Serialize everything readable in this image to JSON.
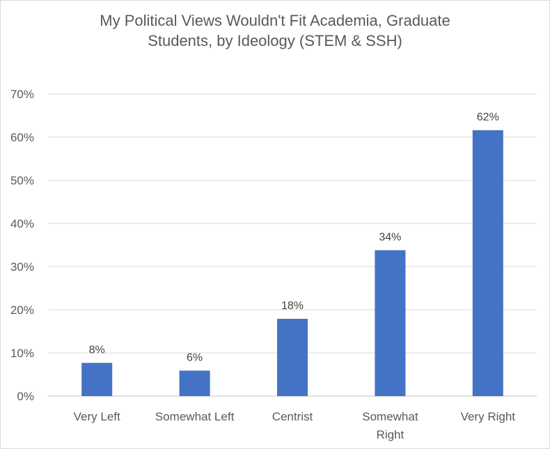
{
  "chart_data": {
    "type": "bar",
    "title_lines": [
      "My Political Views Wouldn't Fit Academia, Graduate",
      "Students, by Ideology (STEM & SSH)"
    ],
    "categories": [
      [
        "Very Left"
      ],
      [
        "Somewhat Left"
      ],
      [
        "Centrist"
      ],
      [
        "Somewhat",
        "Right"
      ],
      [
        "Very Right"
      ]
    ],
    "values": [
      7.7,
      5.9,
      17.9,
      33.8,
      61.6
    ],
    "data_labels": [
      "8%",
      "6%",
      "18%",
      "34%",
      "62%"
    ],
    "ylim": [
      0,
      70
    ],
    "yticks": [
      0,
      10,
      20,
      30,
      40,
      50,
      60,
      70
    ],
    "ytick_labels": [
      "0%",
      "10%",
      "20%",
      "30%",
      "40%",
      "50%",
      "60%",
      "70%"
    ],
    "bar_color": "#4472c4",
    "grid": true,
    "legend": "none"
  }
}
